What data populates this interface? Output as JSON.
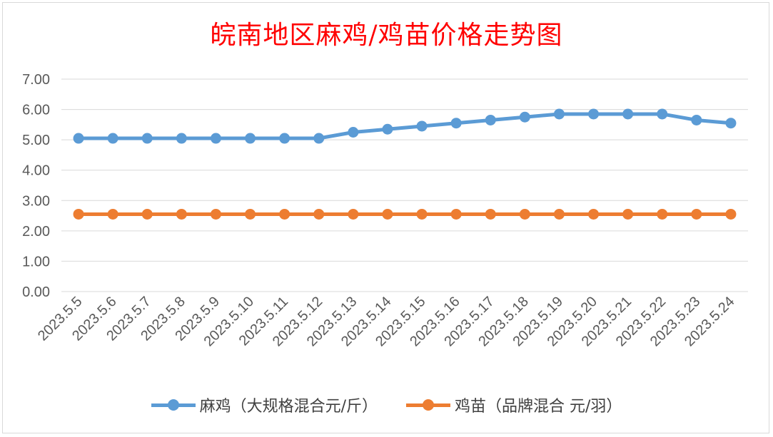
{
  "chart_data": {
    "type": "line",
    "title": "皖南地区麻鸡/鸡苗价格走势图",
    "title_color": "#ff0000",
    "categories": [
      "2023.5.5",
      "2023.5.6",
      "2023.5.7",
      "2023.5.8",
      "2023.5.9",
      "2023.5.10",
      "2023.5.11",
      "2023.5.12",
      "2023.5.13",
      "2023.5.14",
      "2023.5.15",
      "2023.5.16",
      "2023.5.17",
      "2023.5.18",
      "2023.5.19",
      "2023.5.20",
      "2023.5.21",
      "2023.5.22",
      "2023.5.23",
      "2023.5.24"
    ],
    "series": [
      {
        "name": "麻鸡（大规格混合元/斤）",
        "color": "#5b9bd5",
        "values": [
          5.05,
          5.05,
          5.05,
          5.05,
          5.05,
          5.05,
          5.05,
          5.05,
          5.25,
          5.35,
          5.45,
          5.55,
          5.65,
          5.75,
          5.85,
          5.85,
          5.85,
          5.85,
          5.65,
          5.55
        ]
      },
      {
        "name": "鸡苗（品牌混合 元/羽）",
        "color": "#ed7d31",
        "values": [
          2.55,
          2.55,
          2.55,
          2.55,
          2.55,
          2.55,
          2.55,
          2.55,
          2.55,
          2.55,
          2.55,
          2.55,
          2.55,
          2.55,
          2.55,
          2.55,
          2.55,
          2.55,
          2.55,
          2.55
        ]
      }
    ],
    "yticks": [
      "0.00",
      "1.00",
      "2.00",
      "3.00",
      "4.00",
      "5.00",
      "6.00",
      "7.00"
    ],
    "ylim": [
      0,
      7
    ],
    "grid": true,
    "legend_position": "bottom"
  }
}
